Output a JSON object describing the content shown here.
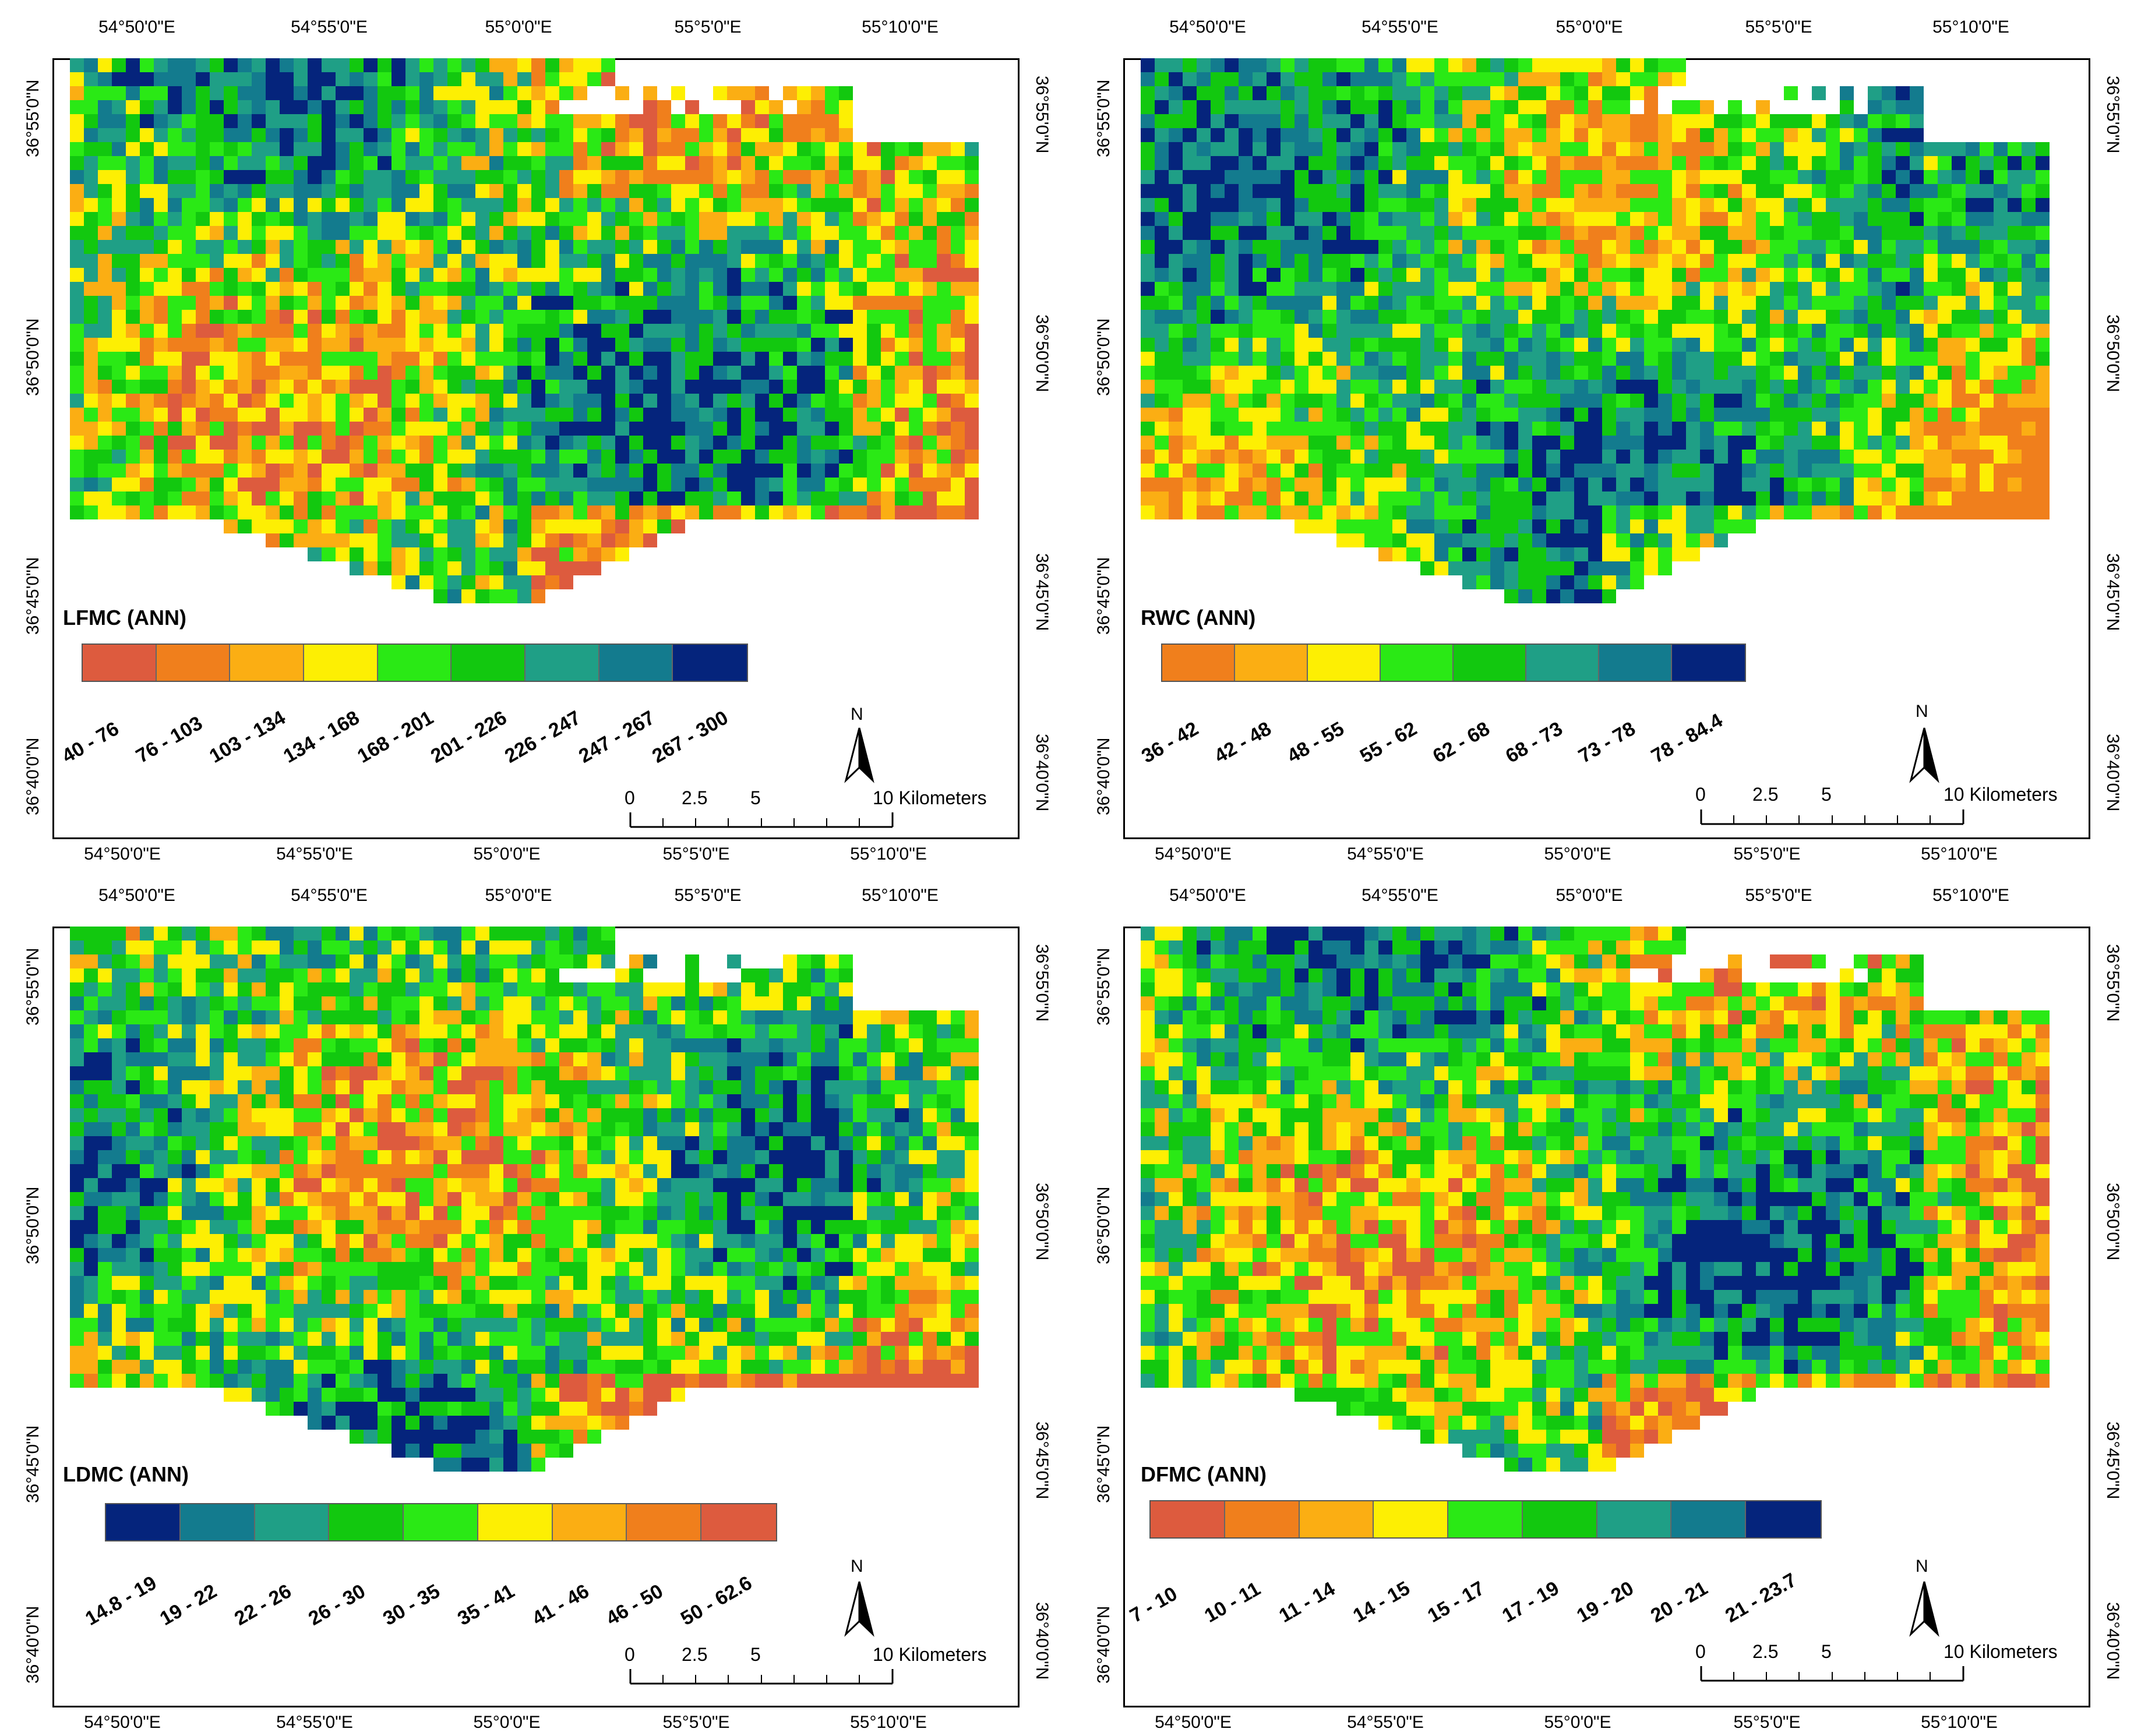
{
  "lon_ticks": [
    "54°50'0\"E",
    "54°55'0\"E",
    "55°0'0\"E",
    "55°5'0\"E",
    "55°10'0\"E"
  ],
  "lat_ticks": [
    "36°55'0\"N",
    "36°50'0\"N",
    "36°45'0\"N",
    "36°40'0\"N"
  ],
  "north_label": "N",
  "scale_bar": {
    "zero": "0",
    "mid1": "2.5",
    "mid2": "5",
    "end": "10 Kilometers"
  },
  "palettes": {
    "red": "#dd5b3e",
    "orange": "#f07f1c",
    "lightorange": "#fbae13",
    "yellow": "#fdef03",
    "brightgreen": "#2ae915",
    "green": "#12c80f",
    "teal": "#1f9f86",
    "bluegreen": "#137b8e",
    "navy": "#05247c"
  },
  "maps": [
    {
      "title": "LFMC (ANN)",
      "ranges": [
        "40 - 76",
        "76 - 103",
        "103 - 134",
        "134 - 168",
        "168 - 201",
        "201 - 226",
        "226 - 247",
        "247 - 267",
        "267 - 300"
      ],
      "colors": [
        "#dd5b3e",
        "#f07f1c",
        "#fbae13",
        "#fdef03",
        "#2ae915",
        "#12c80f",
        "#1f9f86",
        "#137b8e",
        "#05247c"
      ]
    },
    {
      "title": "RWC (ANN)",
      "ranges": [
        "36 - 42",
        "42 - 48",
        "48 - 55",
        "55 - 62",
        "62 - 68",
        "68 - 73",
        "73 - 78",
        "78 - 84.4"
      ],
      "colors": [
        "#f07f1c",
        "#fbae13",
        "#fdef03",
        "#2ae915",
        "#12c80f",
        "#1f9f86",
        "#137b8e",
        "#05247c"
      ]
    },
    {
      "title": "LDMC (ANN)",
      "ranges": [
        "14.8 - 19",
        "19 - 22",
        "22 - 26",
        "26 - 30",
        "30 - 35",
        "35 - 41",
        "41 - 46",
        "46 - 50",
        "50 - 62.6"
      ],
      "colors": [
        "#05247c",
        "#137b8e",
        "#1f9f86",
        "#12c80f",
        "#2ae915",
        "#fdef03",
        "#fbae13",
        "#f07f1c",
        "#dd5b3e"
      ]
    },
    {
      "title": "DFMC (ANN)",
      "ranges": [
        "7 - 10",
        "10 - 11",
        "11 - 14",
        "14 - 15",
        "15 - 17",
        "17 - 19",
        "19 - 20",
        "20 - 21",
        "21 - 23.7"
      ],
      "colors": [
        "#dd5b3e",
        "#f07f1c",
        "#fbae13",
        "#fdef03",
        "#2ae915",
        "#12c80f",
        "#1f9f86",
        "#137b8e",
        "#05247c"
      ]
    }
  ]
}
